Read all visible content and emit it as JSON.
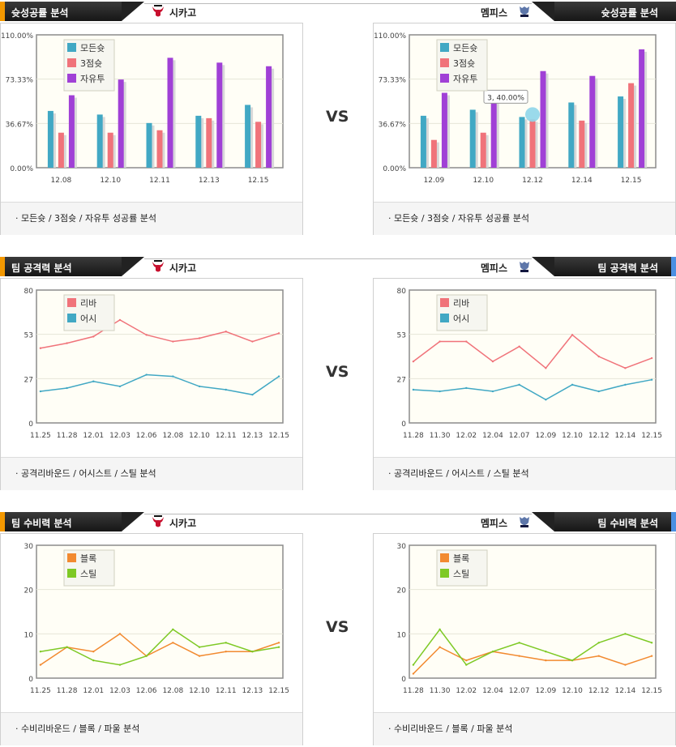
{
  "vs_label": "VS",
  "sections": [
    {
      "key": "shooting",
      "accent": "#f39800",
      "left": {
        "title": "슛성공률 분석",
        "team": "시카고",
        "logo": "bulls-logo",
        "caption": "·  모든슛 / 3점슛 / 자유투 성공률 분석",
        "chart_data": {
          "type": "bar",
          "categories": [
            "12.08",
            "12.10",
            "12.11",
            "12.13",
            "12.15"
          ],
          "ylim": [
            0,
            110
          ],
          "yticks": [
            "0.00%",
            "36.67%",
            "73.33%",
            "110.00%"
          ],
          "series": [
            {
              "name": "모든슛",
              "color": "#41a8c4",
              "values": [
                47,
                44,
                37,
                43,
                52
              ]
            },
            {
              "name": "3점슛",
              "color": "#f0737a",
              "values": [
                29,
                29,
                31,
                41,
                38
              ]
            },
            {
              "name": "자유투",
              "color": "#a040d6",
              "values": [
                60,
                73,
                91,
                87,
                84
              ]
            }
          ]
        }
      },
      "right": {
        "title": "슛성공률 분석",
        "team": "멤피스",
        "logo": "grizzlies-logo",
        "caption": "·  모든슛 / 3점슛 / 자유투 성공률 분석",
        "chart_data": {
          "type": "bar",
          "categories": [
            "12.09",
            "12.10",
            "12.12",
            "12.14",
            "12.15"
          ],
          "ylim": [
            0,
            110
          ],
          "yticks": [
            "0.00%",
            "36.67%",
            "73.33%",
            "110.00%"
          ],
          "tooltip": {
            "text": "3, 40.00%",
            "category": 2,
            "value": 40
          },
          "series": [
            {
              "name": "모든슛",
              "color": "#41a8c4",
              "values": [
                43,
                48,
                42,
                54,
                59
              ]
            },
            {
              "name": "3점슛",
              "color": "#f0737a",
              "values": [
                23,
                29,
                40,
                39,
                70
              ]
            },
            {
              "name": "자유투",
              "color": "#a040d6",
              "values": [
                62,
                62,
                80,
                76,
                98
              ]
            }
          ]
        }
      }
    },
    {
      "key": "offense",
      "accent": "#f39800",
      "accent_right": "#4a90e2",
      "left": {
        "title": "팀 공격력 분석",
        "team": "시카고",
        "logo": "bulls-logo",
        "caption": "·  공격리바운드 / 어시스트 / 스틸 분석",
        "chart_data": {
          "type": "line",
          "categories": [
            "11.25",
            "11.28",
            "12.01",
            "12.03",
            "12.06",
            "12.08",
            "12.10",
            "12.11",
            "12.13",
            "12.15"
          ],
          "ylim": [
            0,
            80
          ],
          "yticks": [
            "0",
            "27",
            "53",
            "80"
          ],
          "series": [
            {
              "name": "리바",
              "color": "#f0737a",
              "values": [
                45,
                48,
                52,
                62,
                53,
                49,
                51,
                55,
                49,
                54
              ]
            },
            {
              "name": "어시",
              "color": "#41a8c4",
              "values": [
                19,
                21,
                25,
                22,
                29,
                28,
                22,
                20,
                17,
                28
              ]
            }
          ]
        }
      },
      "right": {
        "title": "팀 공격력 분석",
        "team": "멤피스",
        "logo": "grizzlies-logo",
        "caption": "·  공격리바운드 / 어시스트 / 스틸 분석",
        "chart_data": {
          "type": "line",
          "categories": [
            "11.28",
            "11.30",
            "12.02",
            "12.04",
            "12.07",
            "12.09",
            "12.10",
            "12.12",
            "12.14",
            "12.15"
          ],
          "ylim": [
            0,
            80
          ],
          "yticks": [
            "0",
            "27",
            "53",
            "80"
          ],
          "series": [
            {
              "name": "리바",
              "color": "#f0737a",
              "values": [
                37,
                49,
                49,
                37,
                46,
                33,
                53,
                40,
                33,
                39
              ]
            },
            {
              "name": "어시",
              "color": "#41a8c4",
              "values": [
                20,
                19,
                21,
                19,
                23,
                14,
                23,
                19,
                23,
                26
              ]
            }
          ]
        }
      }
    },
    {
      "key": "defense",
      "accent": "#f39800",
      "accent_right": "#4a90e2",
      "left": {
        "title": "팀 수비력 분석",
        "team": "시카고",
        "logo": "bulls-logo",
        "caption": "·  수비리바운드 / 블록 / 파울 분석",
        "chart_data": {
          "type": "line",
          "categories": [
            "11.25",
            "11.28",
            "12.01",
            "12.03",
            "12.06",
            "12.08",
            "12.10",
            "12.11",
            "12.13",
            "12.15"
          ],
          "ylim": [
            0,
            30
          ],
          "yticks": [
            "0",
            "10",
            "20",
            "30"
          ],
          "series": [
            {
              "name": "블록",
              "color": "#f28a30",
              "values": [
                3,
                7,
                6,
                10,
                5,
                8,
                5,
                6,
                6,
                8
              ]
            },
            {
              "name": "스틸",
              "color": "#7ec925",
              "values": [
                6,
                7,
                4,
                3,
                5,
                11,
                7,
                8,
                6,
                7
              ]
            }
          ]
        }
      },
      "right": {
        "title": "팀 수비력 분석",
        "team": "멤피스",
        "logo": "grizzlies-logo",
        "caption": "·  수비리바운드 / 블록 / 파울 분석",
        "chart_data": {
          "type": "line",
          "categories": [
            "11.28",
            "11.30",
            "12.02",
            "12.04",
            "12.07",
            "12.09",
            "12.10",
            "12.12",
            "12.14",
            "12.15"
          ],
          "ylim": [
            0,
            30
          ],
          "yticks": [
            "0",
            "10",
            "20",
            "30"
          ],
          "series": [
            {
              "name": "블록",
              "color": "#f28a30",
              "values": [
                1,
                7,
                4,
                6,
                5,
                4,
                4,
                5,
                3,
                5
              ]
            },
            {
              "name": "스틸",
              "color": "#7ec925",
              "values": [
                3,
                11,
                3,
                6,
                8,
                6,
                4,
                8,
                10,
                8
              ]
            }
          ]
        }
      }
    }
  ]
}
